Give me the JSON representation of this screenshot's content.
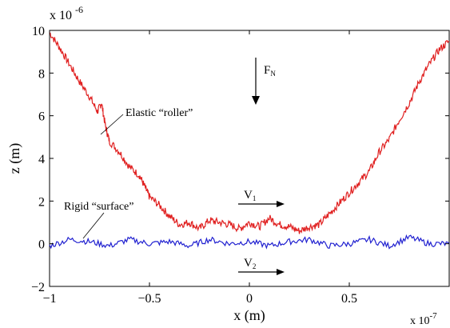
{
  "chart_data": {
    "type": "line",
    "xlabel": "x (m)",
    "ylabel": "z (m)",
    "x_multiplier_label": "x 10",
    "x_multiplier_exponent": "-7",
    "y_multiplier_label": "x 10",
    "y_multiplier_exponent": "-6",
    "xlim": [
      -1,
      1
    ],
    "ylim": [
      -2,
      10
    ],
    "x_ticks": [
      {
        "value": -1,
        "label": "−1"
      },
      {
        "value": -0.5,
        "label": "−0.5"
      },
      {
        "value": 0,
        "label": "0"
      },
      {
        "value": 0.5,
        "label": "0.5"
      }
    ],
    "y_ticks": [
      {
        "value": -2,
        "label": "−2"
      },
      {
        "value": 0,
        "label": "0"
      },
      {
        "value": 2,
        "label": "2"
      },
      {
        "value": 4,
        "label": "4"
      },
      {
        "value": 6,
        "label": "6"
      },
      {
        "value": 8,
        "label": "8"
      },
      {
        "value": 10,
        "label": "10"
      }
    ],
    "grid": false,
    "series": [
      {
        "name": "Elastic “roller”",
        "color": "#e02020",
        "x": [
          -1.0,
          -0.95,
          -0.9,
          -0.85,
          -0.8,
          -0.76,
          -0.74,
          -0.72,
          -0.7,
          -0.65,
          -0.6,
          -0.55,
          -0.52,
          -0.5,
          -0.45,
          -0.4,
          -0.35,
          -0.3,
          -0.25,
          -0.2,
          -0.15,
          -0.1,
          -0.05,
          0.0,
          0.05,
          0.1,
          0.15,
          0.2,
          0.25,
          0.3,
          0.35,
          0.4,
          0.45,
          0.5,
          0.55,
          0.6,
          0.65,
          0.7,
          0.75,
          0.8,
          0.85,
          0.9,
          0.95,
          1.0
        ],
        "values": [
          9.9,
          9.2,
          8.4,
          7.6,
          6.9,
          6.2,
          6.6,
          5.5,
          4.8,
          4.3,
          3.6,
          3.2,
          2.6,
          2.2,
          1.8,
          1.3,
          0.9,
          1.0,
          0.7,
          1.1,
          1.0,
          0.9,
          0.7,
          1.0,
          0.8,
          1.2,
          0.9,
          0.8,
          0.6,
          0.8,
          0.9,
          1.4,
          1.9,
          2.4,
          2.9,
          3.4,
          4.3,
          4.9,
          5.8,
          6.6,
          7.6,
          8.4,
          9.1,
          9.5
        ]
      },
      {
        "name": "Rigid “surface”",
        "color": "#2020d0",
        "x": [
          -1.0,
          -0.9,
          -0.8,
          -0.7,
          -0.6,
          -0.5,
          -0.4,
          -0.3,
          -0.2,
          -0.1,
          0.0,
          0.1,
          0.2,
          0.3,
          0.4,
          0.5,
          0.6,
          0.7,
          0.8,
          0.9,
          1.0
        ],
        "values": [
          -0.1,
          0.2,
          0.1,
          -0.1,
          0.2,
          0.0,
          0.1,
          -0.1,
          0.2,
          0.0,
          0.1,
          -0.1,
          0.1,
          0.2,
          -0.1,
          0.0,
          0.2,
          -0.1,
          0.3,
          0.0,
          0.0
        ]
      }
    ],
    "annotations": [
      {
        "id": "roller",
        "text": "Elastic “roller”",
        "x": -0.74,
        "y": 5.8
      },
      {
        "id": "surface",
        "text": "Rigid “surface”",
        "x": -0.92,
        "y": 1.8
      },
      {
        "id": "fn",
        "text": "F",
        "sub": "N",
        "x": 0.05,
        "y": 8.0
      },
      {
        "id": "v1",
        "text": "V",
        "sub": "1",
        "x": -0.04,
        "y": 2.1
      },
      {
        "id": "v2",
        "text": "V",
        "sub": "2",
        "x": -0.04,
        "y": -0.8
      }
    ]
  }
}
